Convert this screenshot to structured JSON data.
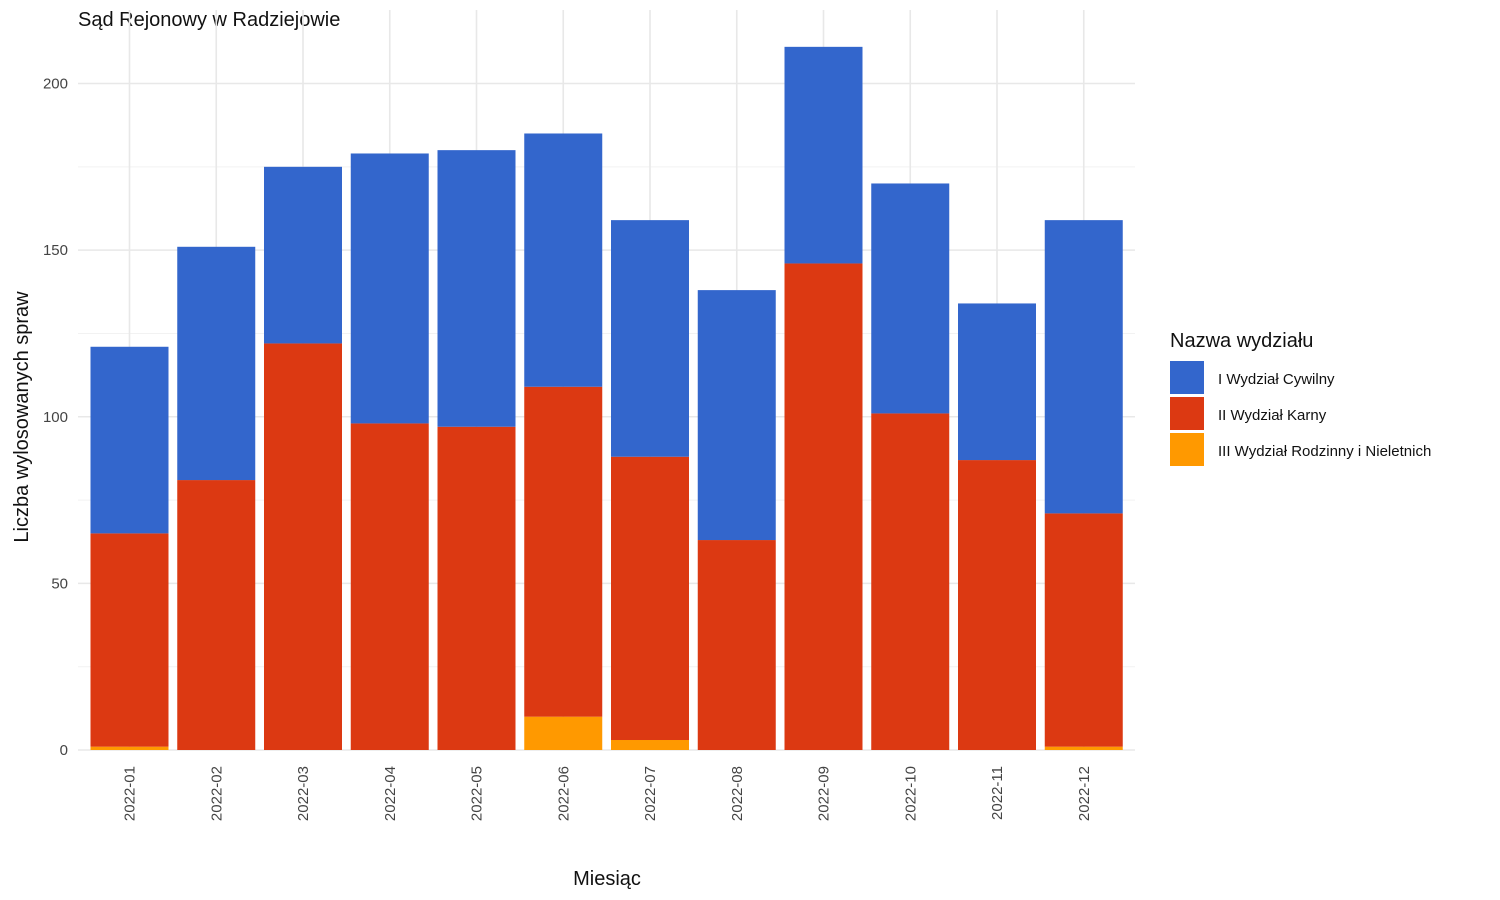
{
  "chart_data": {
    "type": "bar",
    "stacked": true,
    "title": "Sąd Rejonowy w Radziejowie",
    "xlabel": "Miesiąc",
    "ylabel": "Liczba wylosowanych spraw",
    "categories": [
      "2022-01",
      "2022-02",
      "2022-03",
      "2022-04",
      "2022-05",
      "2022-06",
      "2022-07",
      "2022-08",
      "2022-09",
      "2022-10",
      "2022-11",
      "2022-12"
    ],
    "ylim": [
      0,
      215
    ],
    "yticks": [
      0,
      50,
      100,
      150,
      200
    ],
    "grid": true,
    "legend": {
      "title": "Nazwa wydziału",
      "position": "right"
    },
    "series": [
      {
        "name": "III Wydział Rodzinny i Nieletnich",
        "color": "#ff9900",
        "values": [
          1,
          0,
          0,
          0,
          0,
          10,
          3,
          0,
          0,
          0,
          0,
          1
        ]
      },
      {
        "name": "II Wydział Karny",
        "color": "#dc3912",
        "values": [
          64,
          81,
          122,
          98,
          97,
          99,
          85,
          63,
          146,
          101,
          87,
          70
        ]
      },
      {
        "name": "I Wydział Cywilny",
        "color": "#3366cc",
        "values": [
          56,
          70,
          53,
          81,
          83,
          76,
          71,
          75,
          65,
          69,
          47,
          88
        ]
      }
    ],
    "legend_order": [
      "I Wydział Cywilny",
      "II Wydział Karny",
      "III Wydział Rodzinny i Nieletnich"
    ]
  }
}
